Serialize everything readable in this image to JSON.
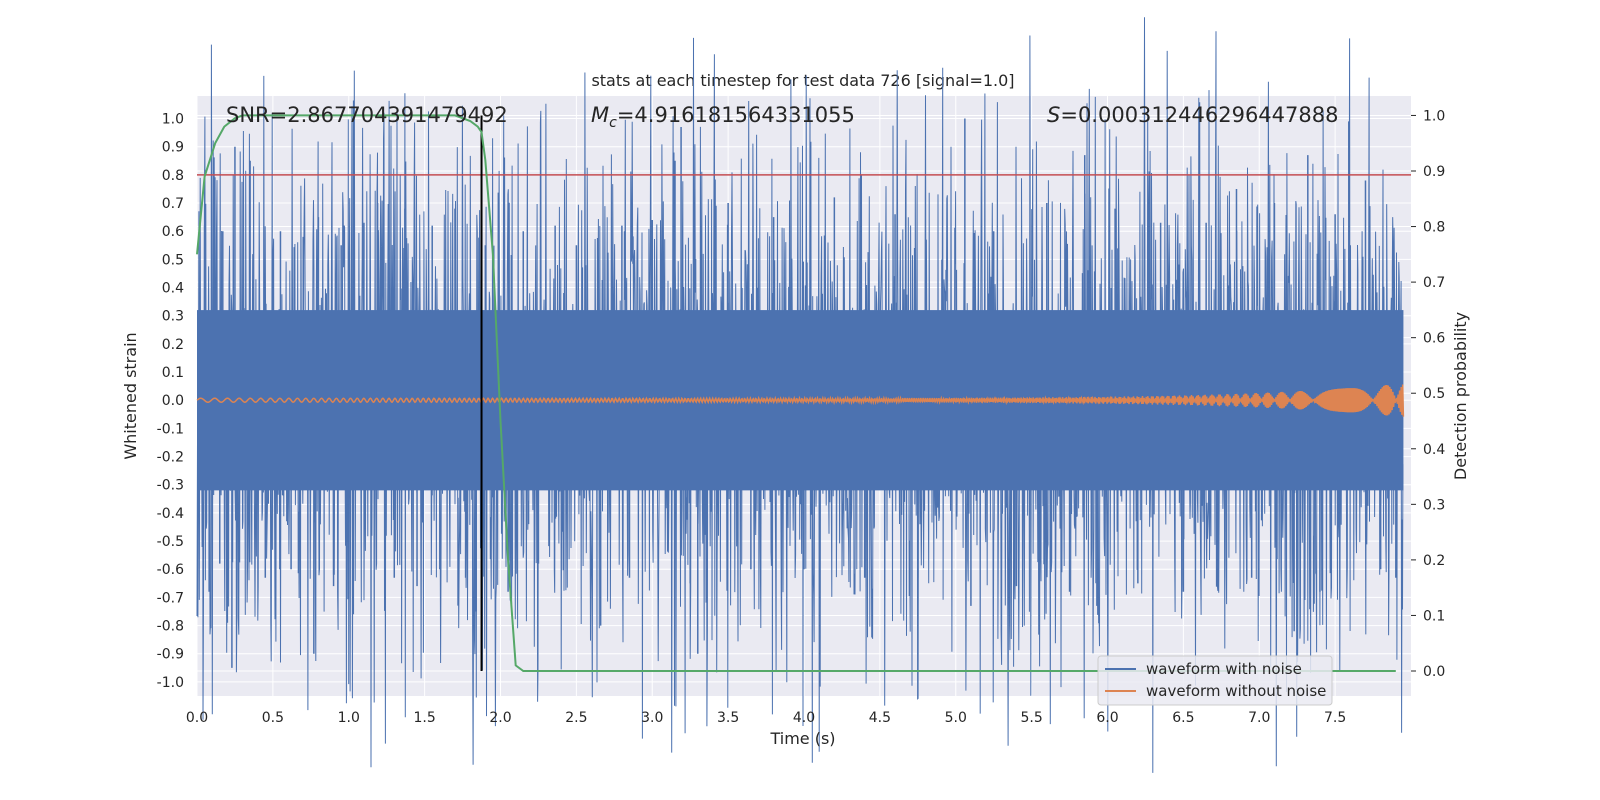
{
  "chart_data": {
    "type": "line",
    "title": "stats at each timestep for test data 726 [signal=1.0]",
    "xlabel": "Time (s)",
    "ylabel": "Whitened strain",
    "y2label": "Detection probability",
    "xlim": [
      0.0,
      8.0
    ],
    "ylim": [
      -1.05,
      1.08
    ],
    "y2lim": [
      -0.045,
      1.035
    ],
    "x_ticks": [
      0.0,
      0.5,
      1.0,
      1.5,
      2.0,
      2.5,
      3.0,
      3.5,
      4.0,
      4.5,
      5.0,
      5.5,
      6.0,
      6.5,
      7.0,
      7.5
    ],
    "x_tick_labels": [
      "0.0",
      "0.5",
      "1.0",
      "1.5",
      "2.0",
      "2.5",
      "3.0",
      "3.5",
      "4.0",
      "4.5",
      "5.0",
      "5.5",
      "6.0",
      "6.5",
      "7.0",
      "7.5"
    ],
    "y_ticks": [
      1.0,
      0.9,
      0.8,
      0.7,
      0.6,
      0.5,
      0.4,
      0.3,
      0.2,
      0.1,
      0.0,
      -0.1,
      -0.2,
      -0.3,
      -0.4,
      -0.5,
      -0.6,
      -0.7,
      -0.8,
      -0.9,
      -1.0
    ],
    "y_tick_labels": [
      "1.0",
      "0.9",
      "0.8",
      "0.7",
      "0.6",
      "0.5",
      "0.4",
      "0.3",
      "0.2",
      "0.1",
      "0.0",
      "-0.1",
      "-0.2",
      "-0.3",
      "-0.4",
      "-0.5",
      "-0.6",
      "-0.7",
      "-0.8",
      "-0.9",
      "-1.0"
    ],
    "y2_ticks": [
      1.0,
      0.9,
      0.8,
      0.7,
      0.6,
      0.5,
      0.4,
      0.3,
      0.2,
      0.1,
      0.0
    ],
    "y2_tick_labels": [
      "1.0",
      "0.9",
      "0.8",
      "0.7",
      "0.6",
      "0.5",
      "0.4",
      "0.3",
      "0.2",
      "0.1",
      "0.0"
    ],
    "annotations": {
      "snr": "SNR=2.867704391479492",
      "mc_symbol": "M",
      "mc_sub": "c",
      "mc_value": "=4.916181564331055",
      "s_symbol": "S",
      "s_value": "=0.000312446296447888"
    },
    "threshold_line": {
      "y": 0.8,
      "color": "#c44e52"
    },
    "vertical_line": {
      "x": 1.875,
      "color": "#000000"
    },
    "series": [
      {
        "name": "waveform with noise",
        "color": "#4c72b0",
        "axis": "left",
        "noise_core_amplitude": 0.4,
        "peaks": [
          [
            0.05,
            0.62
          ],
          [
            0.08,
            -0.68
          ],
          [
            0.15,
            -0.58
          ],
          [
            0.17,
            0.6
          ],
          [
            0.2,
            -0.79
          ],
          [
            0.23,
            -0.95
          ],
          [
            0.25,
            0.9
          ],
          [
            0.35,
            0.85
          ],
          [
            0.45,
            -0.63
          ],
          [
            0.55,
            0.6
          ],
          [
            0.62,
            -0.6
          ],
          [
            0.7,
            0.58
          ],
          [
            0.77,
            -0.9
          ],
          [
            0.8,
            0.65
          ],
          [
            0.9,
            -0.66
          ],
          [
            0.95,
            0.55
          ],
          [
            1.03,
            -0.76
          ],
          [
            1.1,
            0.63
          ],
          [
            1.19,
            0.7
          ],
          [
            1.3,
            -0.63
          ],
          [
            1.37,
            0.68
          ],
          [
            1.45,
            -0.66
          ],
          [
            1.55,
            0.62
          ],
          [
            1.6,
            -0.6
          ],
          [
            1.7,
            0.68
          ],
          [
            1.77,
            -0.63
          ],
          [
            1.84,
            -0.75
          ],
          [
            1.9,
            0.55
          ],
          [
            2.05,
            -0.68
          ],
          [
            2.15,
            0.6
          ],
          [
            2.25,
            -0.58
          ],
          [
            2.36,
            0.62
          ],
          [
            2.5,
            0.55
          ],
          [
            2.66,
            -0.8
          ],
          [
            2.8,
            0.62
          ],
          [
            2.85,
            -0.63
          ],
          [
            3.0,
            0.64
          ],
          [
            3.15,
            0.85
          ],
          [
            3.19,
            0.97
          ],
          [
            3.25,
            -0.65
          ],
          [
            3.3,
            -0.9
          ],
          [
            3.5,
            0.7
          ],
          [
            3.65,
            -0.6
          ],
          [
            3.8,
            0.65
          ],
          [
            4.0,
            -0.6
          ],
          [
            4.2,
            0.72
          ],
          [
            4.4,
            -0.63
          ],
          [
            4.6,
            0.66
          ],
          [
            4.75,
            -0.63
          ],
          [
            5.06,
            1.0
          ],
          [
            5.1,
            -0.73
          ],
          [
            5.25,
            0.6
          ],
          [
            5.4,
            -0.66
          ],
          [
            5.6,
            0.7
          ],
          [
            5.75,
            -0.68
          ],
          [
            5.85,
            0.87
          ],
          [
            5.93,
            -0.73
          ],
          [
            6.05,
            0.68
          ],
          [
            6.2,
            -0.65
          ],
          [
            6.35,
            0.63
          ],
          [
            6.5,
            -0.68
          ],
          [
            6.65,
            0.63
          ],
          [
            6.85,
            0.75
          ],
          [
            6.95,
            -0.63
          ],
          [
            7.1,
            0.7
          ],
          [
            7.23,
            -0.82
          ],
          [
            7.32,
            0.87
          ],
          [
            7.4,
            -0.68
          ],
          [
            7.5,
            0.66
          ],
          [
            7.59,
            0.99
          ],
          [
            7.7,
            0.78
          ],
          [
            7.8,
            -0.6
          ],
          [
            7.9,
            -0.63
          ]
        ]
      },
      {
        "name": "waveform without noise",
        "color": "#dd8452",
        "axis": "left",
        "amplitude_start": 0.007,
        "amplitude_end": 0.06,
        "chirp_end_time": 7.95
      },
      {
        "name": "Detection probability",
        "color": "#55a868",
        "axis": "right",
        "x": [
          0.0,
          0.05,
          0.12,
          0.18,
          0.25,
          0.3,
          0.4,
          0.6,
          1.0,
          1.5,
          1.7,
          1.8,
          1.85,
          1.875,
          1.9,
          1.95,
          2.0,
          2.05,
          2.1,
          2.15,
          2.5,
          3.0,
          4.0,
          5.0,
          6.0,
          7.0,
          7.9
        ],
        "y": [
          0.75,
          0.89,
          0.95,
          0.98,
          0.995,
          1.0,
          1.0,
          1.0,
          1.0,
          1.0,
          1.0,
          0.99,
          0.98,
          0.97,
          0.92,
          0.75,
          0.45,
          0.2,
          0.01,
          0.0,
          0.0,
          0.0,
          0.0,
          0.0,
          0.0,
          0.0,
          0.0
        ]
      }
    ],
    "legend": {
      "location": "lower-right",
      "entries": [
        "waveform with noise",
        "waveform without noise"
      ]
    }
  }
}
